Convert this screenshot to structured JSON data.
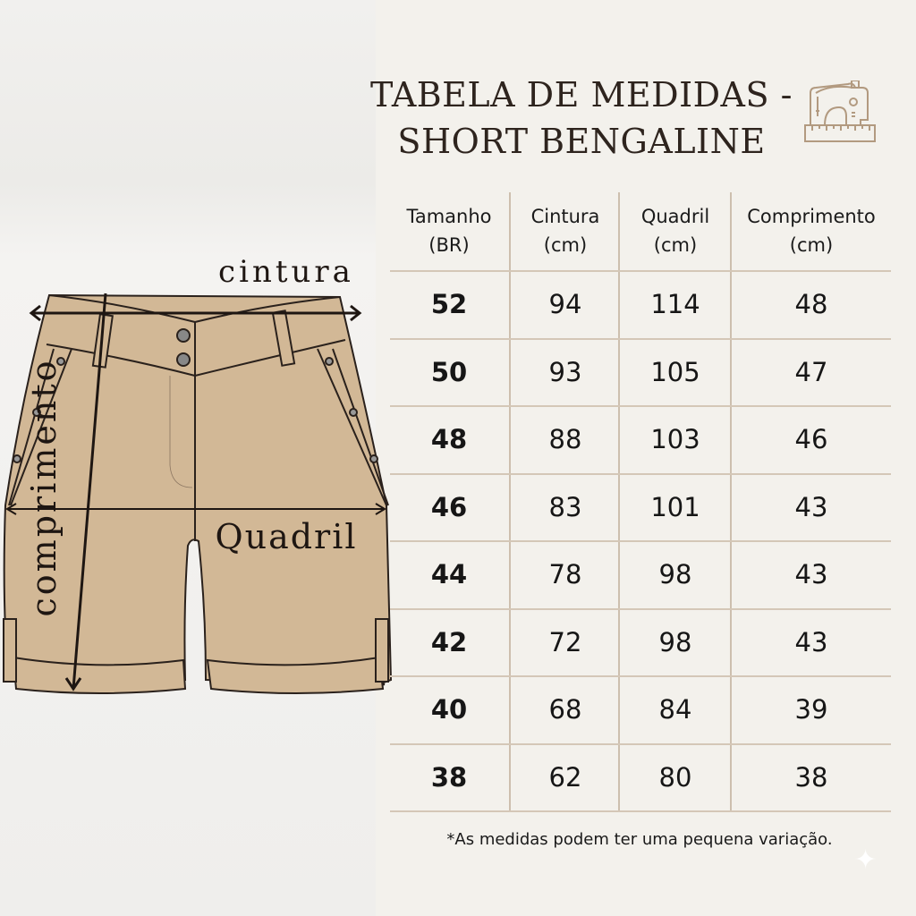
{
  "title": {
    "line1": "TABELA DE MEDIDAS -",
    "line2": "SHORT BENGALINE"
  },
  "header_icon": "sewing-machine-icon",
  "diagram": {
    "labels": {
      "waist": "cintura",
      "hip": "Quadril",
      "length": "comprimento"
    },
    "garment_color": "#d2b896"
  },
  "table": {
    "columns": [
      {
        "name": "Tamanho",
        "unit": "(BR)"
      },
      {
        "name": "Cintura",
        "unit": "(cm)"
      },
      {
        "name": "Quadril",
        "unit": "(cm)"
      },
      {
        "name": "Comprimento",
        "unit": "(cm)"
      }
    ],
    "rows": [
      [
        "52",
        "94",
        "114",
        "48"
      ],
      [
        "50",
        "93",
        "105",
        "47"
      ],
      [
        "48",
        "88",
        "103",
        "46"
      ],
      [
        "46",
        "83",
        "101",
        "43"
      ],
      [
        "44",
        "78",
        "98",
        "43"
      ],
      [
        "42",
        "72",
        "98",
        "43"
      ],
      [
        "40",
        "68",
        "84",
        "39"
      ],
      [
        "38",
        "62",
        "80",
        "38"
      ]
    ]
  },
  "footnote": "*As medidas podem ter uma pequena variação.",
  "colors": {
    "divider": "#cdbfae",
    "text": "#1f1a17",
    "background": "#f3f1ec"
  }
}
